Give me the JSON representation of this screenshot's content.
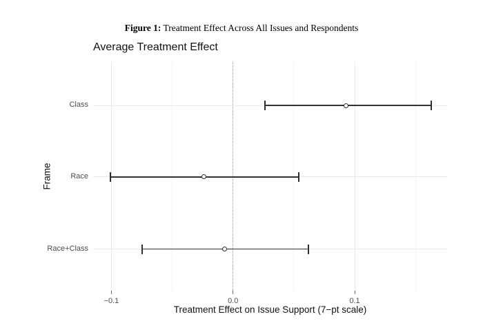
{
  "figure": {
    "caption_label": "Figure 1:",
    "caption_text": " Treatment Effect Across All Issues and Respondents"
  },
  "chart_data": {
    "type": "scatter",
    "subtype": "coefficient-dot-whisker-plot",
    "title": "Average Treatment Effect",
    "xlabel": "Treatment Effect on Issue Support (7−pt scale)",
    "ylabel": "Frame",
    "categories": [
      "Class",
      "Race",
      "Race+Class"
    ],
    "points": [
      {
        "frame": "Class",
        "estimate": 0.093,
        "ci_low": 0.026,
        "ci_high": 0.163
      },
      {
        "frame": "Race",
        "estimate": -0.024,
        "ci_low": -0.101,
        "ci_high": 0.054
      },
      {
        "frame": "Race+Class",
        "estimate": -0.007,
        "ci_low": -0.075,
        "ci_high": 0.062
      }
    ],
    "xlim": [
      -0.115,
      0.176
    ],
    "x_ticks": [
      {
        "value": -0.1,
        "label": "−0.1"
      },
      {
        "value": 0.0,
        "label": "0.0"
      },
      {
        "value": 0.1,
        "label": "0.1"
      }
    ],
    "x_minor_gridlines": [
      -0.05,
      0.05,
      0.15
    ],
    "reference_line": {
      "value": 0.0,
      "style": "dashed"
    },
    "grid": true,
    "legend": "none",
    "colors": {
      "errorbar": "#2f2f2f",
      "point_stroke": "#2f2f2f",
      "point_fill": "#ffffff",
      "major_gridline": "#e9e9e9",
      "minor_gridline": "#f4f4f4",
      "reference_line": "#b3b3b3",
      "axis_text": "#4d4d4d",
      "tick_mark": "#666666",
      "background": "#ffffff"
    }
  }
}
